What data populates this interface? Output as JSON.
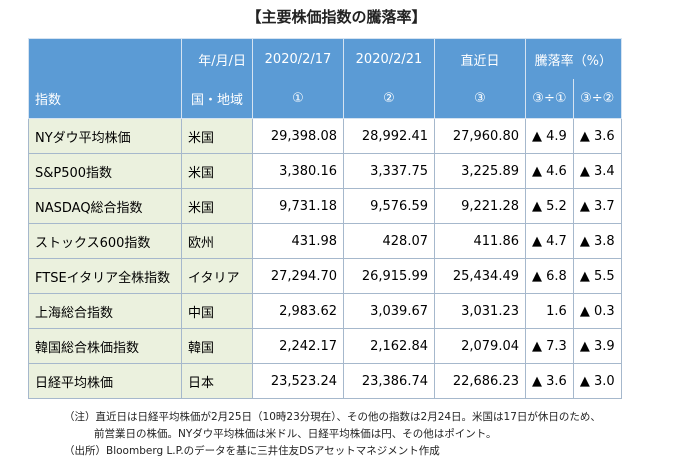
{
  "title": "【主要株価指数の騰落率】",
  "table": {
    "header": [
      [
        "",
        "年/月/日",
        "2020/2/17",
        "2020/2/21",
        "直近日",
        "騰落率（%）"
      ],
      [
        "指数",
        "国・地域",
        "①",
        "②",
        "③",
        "③÷①",
        "③÷②"
      ]
    ],
    "rows": [
      [
        "NYダウ平均株価",
        "米国",
        "29,398.08",
        "28,992.41",
        "27,960.80",
        "▲ 4.9",
        "▲ 3.6"
      ],
      [
        "S&P500指数",
        "米国",
        "3,380.16",
        "3,337.75",
        "3,225.89",
        "▲ 4.6",
        "▲ 3.4"
      ],
      [
        "NASDAQ総合指数",
        "米国",
        "9,731.18",
        "9,576.59",
        "9,221.28",
        "▲ 5.2",
        "▲ 3.7"
      ],
      [
        "ストックス600指数",
        "欧州",
        "431.98",
        "428.07",
        "411.86",
        "▲ 4.7",
        "▲ 3.8"
      ],
      [
        "FTSEイタリア全株指数",
        "イタリア",
        "27,294.70",
        "26,915.99",
        "25,434.49",
        "▲ 6.8",
        "▲ 5.5"
      ],
      [
        "上海総合指数",
        "中国",
        "2,983.62",
        "3,039.67",
        "3,031.23",
        "1.6",
        "▲ 0.3"
      ],
      [
        "韓国総合株価指数",
        "韓国",
        "2,242.17",
        "2,162.84",
        "2,079.04",
        "▲ 7.3",
        "▲ 3.9"
      ],
      [
        "日経平均株価",
        "日本",
        "23,523.24",
        "23,386.74",
        "22,686.23",
        "▲ 3.6",
        "▲ 3.0"
      ]
    ]
  },
  "notes": [
    "（注）直近日は日経平均株価が2月25日（10時23分現在）、その他の指数は2月24日。米国は17日が休日のため、",
    "前営業日の株価。NYダウ平均株価は米ドル、日経平均株価は円、その他はポイント。",
    "（出所）Bloomberg L.P.のデータを基に三井住友DSアセットマネジメント作成"
  ]
}
